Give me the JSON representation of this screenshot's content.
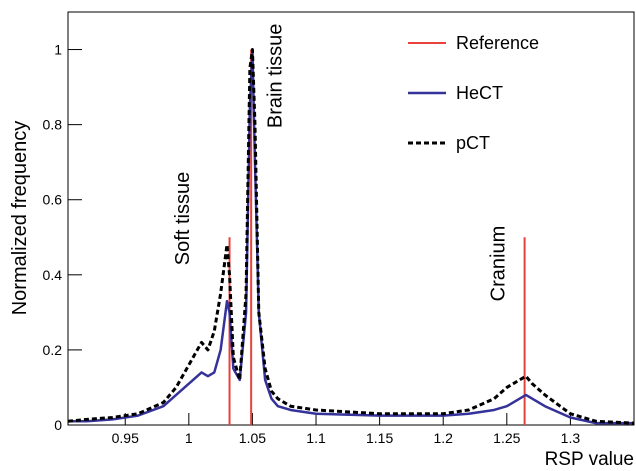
{
  "chart_data": {
    "type": "line",
    "x_label": "RSP value",
    "y_label": "Normalized frequency",
    "xlim": [
      0.905,
      1.35
    ],
    "xticks": [
      0.95,
      1,
      1.05,
      1.1,
      1.15,
      1.2,
      1.25,
      1.3
    ],
    "ylim": [
      0,
      1.1
    ],
    "yticks": [
      0,
      0.2,
      0.4,
      0.6,
      0.8,
      1
    ],
    "x": [
      0.905,
      0.92,
      0.94,
      0.96,
      0.98,
      0.99,
      1.0,
      1.01,
      1.015,
      1.02,
      1.025,
      1.03,
      1.032,
      1.035,
      1.04,
      1.045,
      1.048,
      1.05,
      1.052,
      1.055,
      1.06,
      1.065,
      1.07,
      1.08,
      1.1,
      1.15,
      1.2,
      1.22,
      1.24,
      1.25,
      1.26,
      1.265,
      1.27,
      1.28,
      1.3,
      1.32,
      1.35
    ],
    "series": [
      {
        "name": "Reference",
        "color": "#e8413a",
        "style": "stem",
        "x": [
          1.032,
          1.049,
          1.264
        ],
        "values": [
          0.5,
          1,
          0.5
        ]
      },
      {
        "name": "HeCT",
        "color": "#35329a",
        "style": "solid",
        "values": [
          0.01,
          0.01,
          0.015,
          0.025,
          0.05,
          0.08,
          0.11,
          0.14,
          0.13,
          0.14,
          0.2,
          0.33,
          0.3,
          0.15,
          0.12,
          0.3,
          0.85,
          1.0,
          0.7,
          0.3,
          0.12,
          0.07,
          0.05,
          0.04,
          0.03,
          0.025,
          0.025,
          0.03,
          0.04,
          0.05,
          0.07,
          0.08,
          0.07,
          0.05,
          0.02,
          0.005,
          0.005
        ]
      },
      {
        "name": "pCT",
        "color": "#000000",
        "style": "dashed",
        "values": [
          0.01,
          0.015,
          0.02,
          0.03,
          0.06,
          0.1,
          0.16,
          0.22,
          0.2,
          0.25,
          0.35,
          0.48,
          0.4,
          0.18,
          0.12,
          0.35,
          0.95,
          1.0,
          0.8,
          0.3,
          0.15,
          0.09,
          0.07,
          0.05,
          0.04,
          0.03,
          0.03,
          0.04,
          0.07,
          0.1,
          0.12,
          0.13,
          0.11,
          0.08,
          0.03,
          0.01,
          0.005
        ]
      }
    ],
    "annotations": [
      {
        "text": "Soft tissue",
        "x": 1.0,
        "y": 0.55
      },
      {
        "text": "Brain tissue",
        "x": 1.073,
        "y": 0.93
      },
      {
        "text": "Cranium",
        "x": 1.248,
        "y": 0.43
      }
    ],
    "legend": "top-right"
  }
}
